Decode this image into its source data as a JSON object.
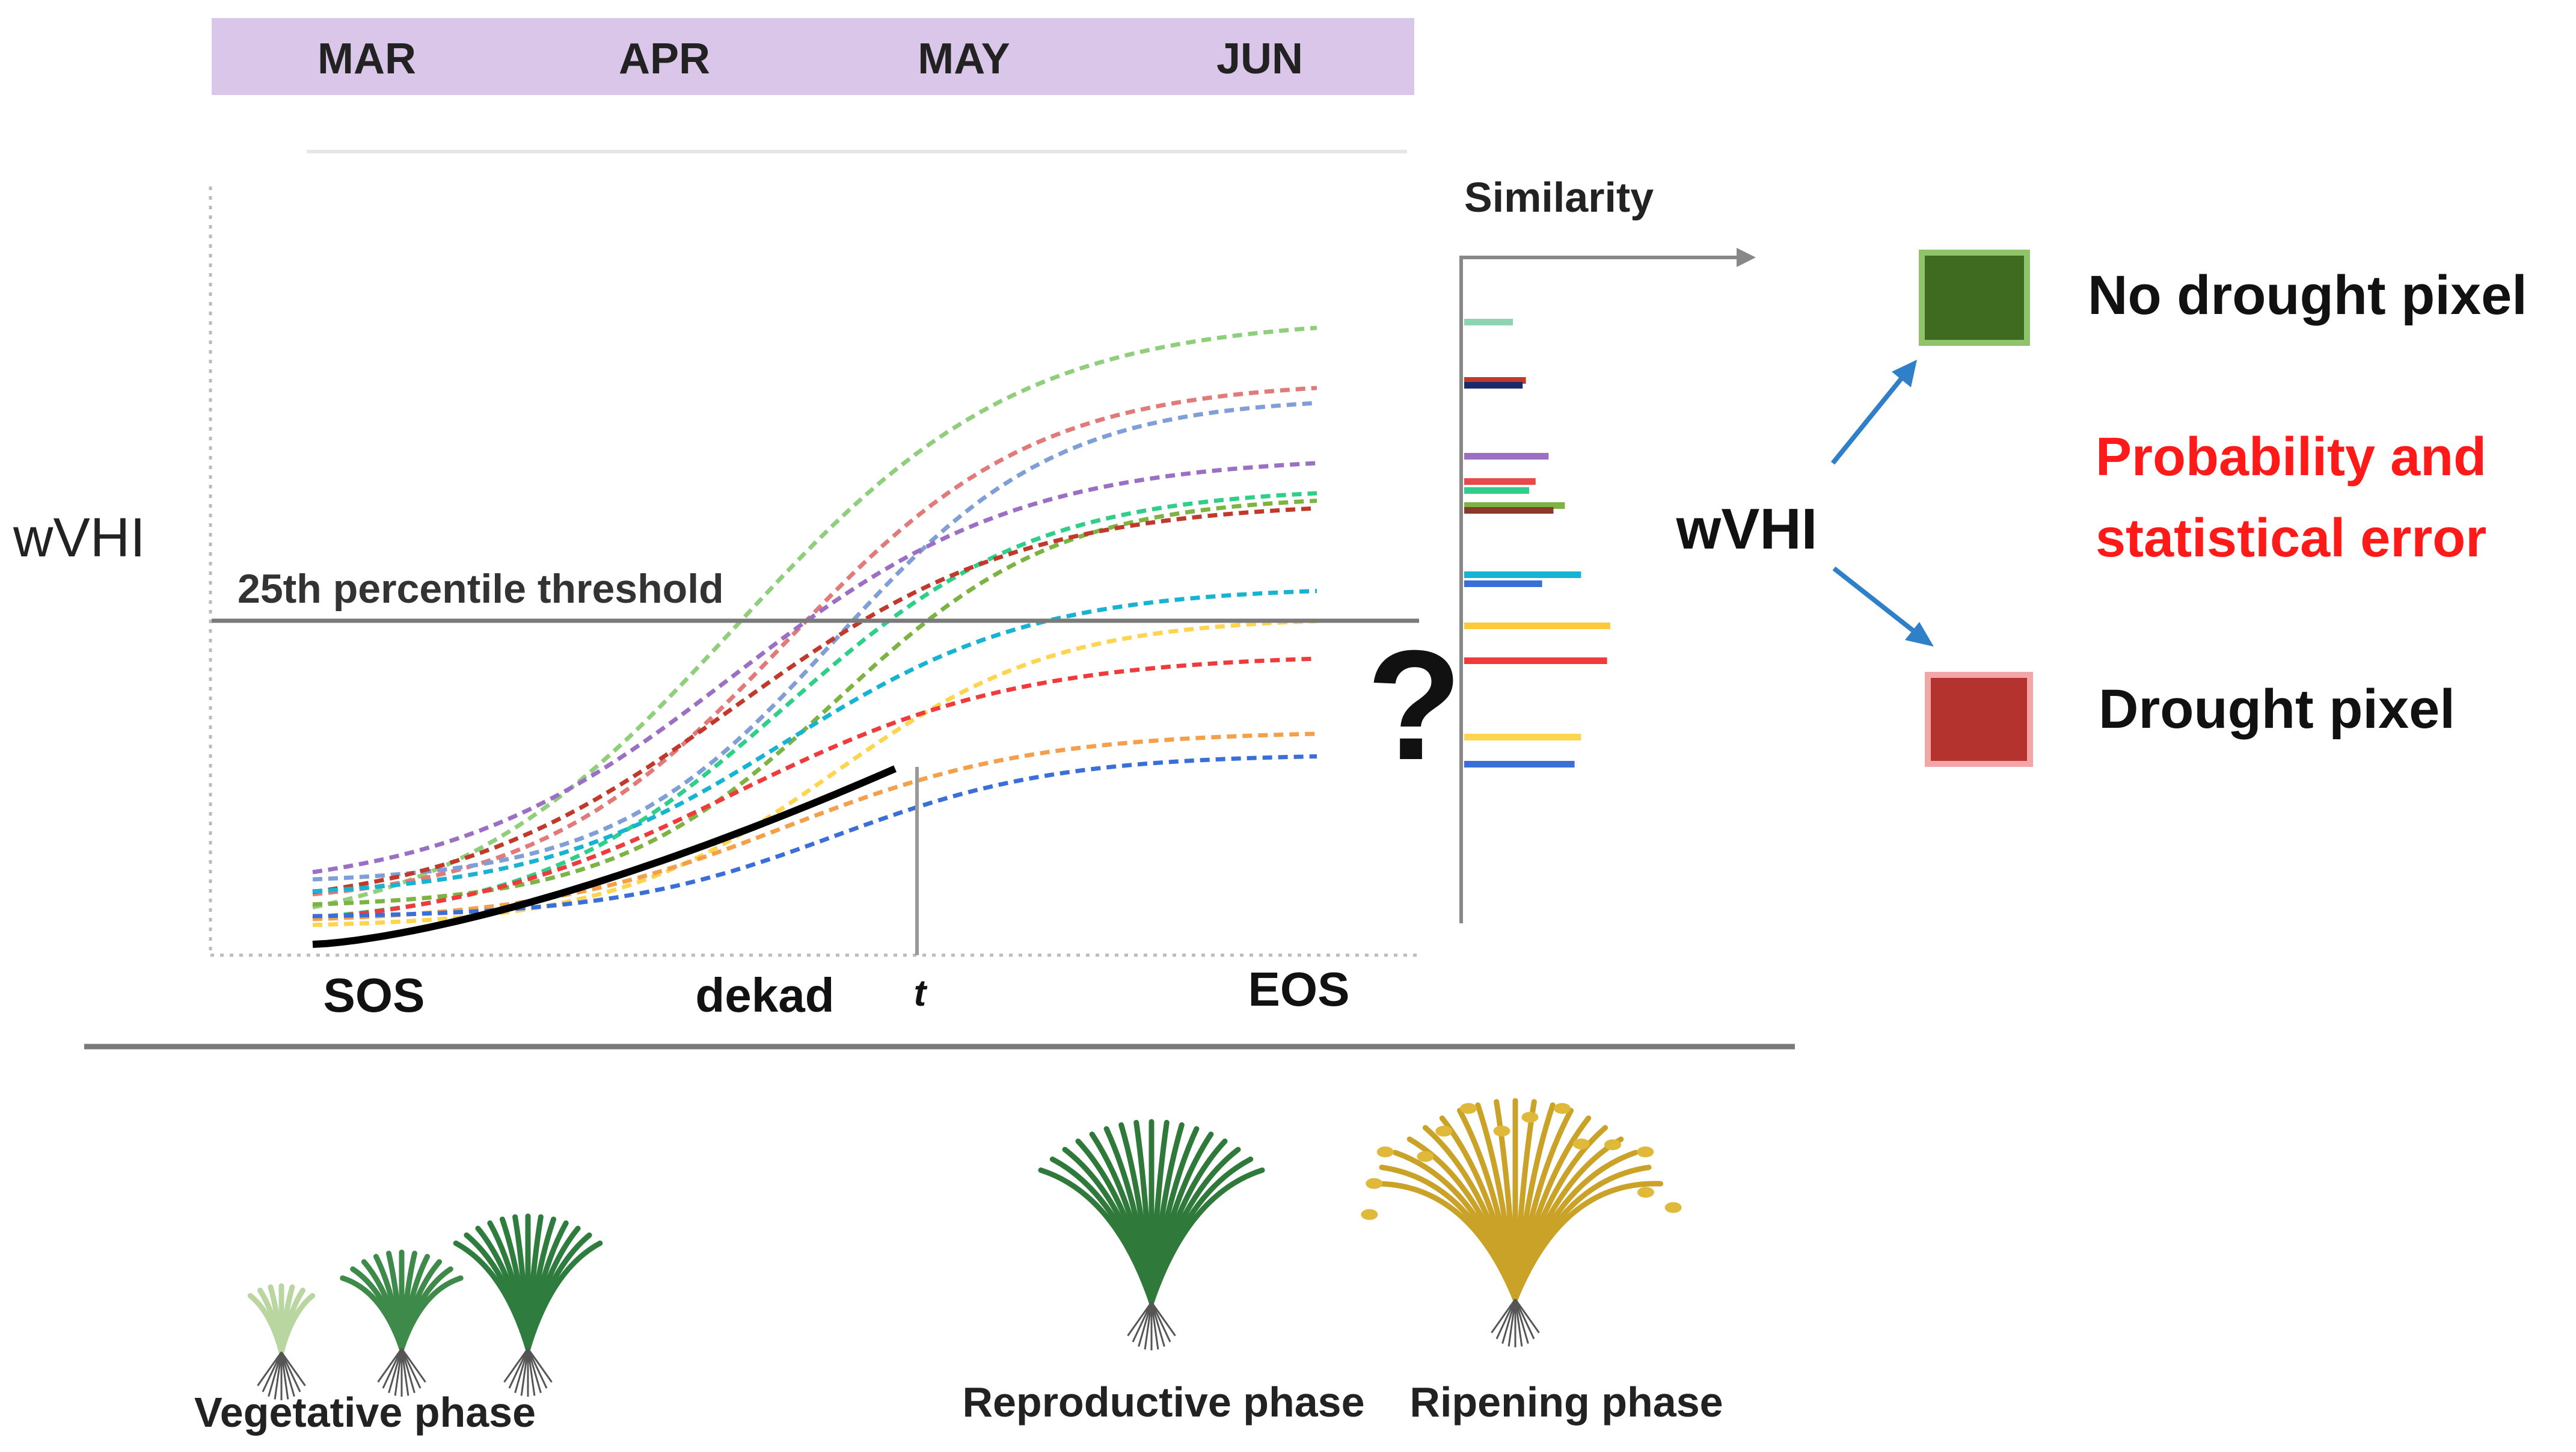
{
  "months": [
    "MAR",
    "APR",
    "MAY",
    "JUN"
  ],
  "y_label": "wVHI",
  "threshold_label": "25th percentile threshold",
  "x_axis": {
    "start": "SOS",
    "middle": "dekad",
    "current": "t",
    "end": "EOS"
  },
  "unknown_mark": "?",
  "similarity_label": "Similarity",
  "classifier_label": "wVHI",
  "outcomes": {
    "no_drought": {
      "label": "No drought pixel",
      "color": "#3f6b21"
    },
    "drought": {
      "label": "Drought pixel",
      "color": "#b5332f"
    },
    "note": "Probability and statistical error",
    "note_color": "#ff1a1a"
  },
  "phases": {
    "vegetative": "Vegetative phase",
    "reproductive": "Reproductive phase",
    "ripening": "Ripening phase"
  },
  "colors": {
    "month_band": "#d9c6e8",
    "arrow": "#2f7fc9",
    "observed_curve": "#000000",
    "threshold_line": "#7a7a7a"
  },
  "chart_data": {
    "type": "line",
    "y_threshold_fraction": 0.435,
    "observed_until_fraction": 0.58,
    "historical_series": [
      {
        "color": "#8fce7a",
        "end_level": 0.82
      },
      {
        "color": "#e27a7a",
        "end_level": 0.74
      },
      {
        "color": "#7f9fd6",
        "end_level": 0.72
      },
      {
        "color": "#9a6fc4",
        "end_level": 0.64
      },
      {
        "color": "#2fcf8a",
        "end_level": 0.6
      },
      {
        "color": "#7cb342",
        "end_level": 0.59
      },
      {
        "color": "#c0392b",
        "end_level": 0.58
      },
      {
        "color": "#17b3d3",
        "end_level": 0.47
      },
      {
        "color": "#ffd54f",
        "end_level": 0.43
      },
      {
        "color": "#ef3b3b",
        "end_level": 0.38
      },
      {
        "color": "#f4a04a",
        "end_level": 0.28
      },
      {
        "color": "#3a6fd8",
        "end_level": 0.25
      }
    ],
    "similarity_bars": [
      {
        "color": "#8fd3b5",
        "value": 0.3
      },
      {
        "color": "#c0392b",
        "value": 0.38
      },
      {
        "color": "#1a2a6c",
        "value": 0.36
      },
      {
        "color": "#9a6fc4",
        "value": 0.52
      },
      {
        "color": "#e84a4a",
        "value": 0.44
      },
      {
        "color": "#2fcf8a",
        "value": 0.4
      },
      {
        "color": "#7cb342",
        "value": 0.62
      },
      {
        "color": "#8b3a2a",
        "value": 0.55
      },
      {
        "color": "#17b3d3",
        "value": 0.72
      },
      {
        "color": "#3a6fd8",
        "value": 0.48
      },
      {
        "color": "#ffc93c",
        "value": 0.9
      },
      {
        "color": "#ef3b3b",
        "value": 0.88
      },
      {
        "color": "#ffd54f",
        "value": 0.72
      },
      {
        "color": "#3a6fd8",
        "value": 0.68
      }
    ]
  }
}
